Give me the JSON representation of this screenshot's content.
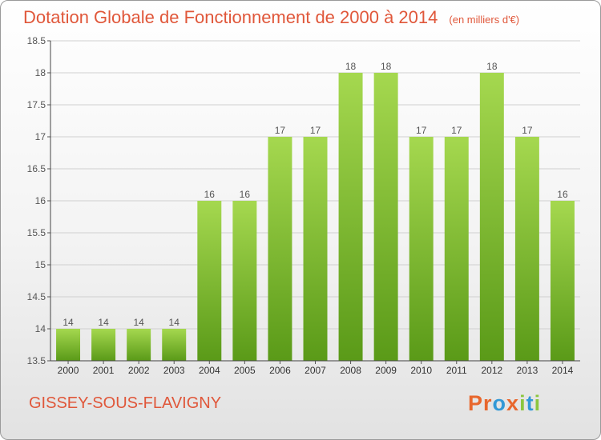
{
  "header": {
    "title": "Dotation Globale de Fonctionnement de 2000 à 2014",
    "unit": "(en milliers d'€)"
  },
  "footer": {
    "city": "GISSEY-SOUS-FLAVIGNY",
    "logo": {
      "letters": [
        "P",
        "r",
        "o",
        "x",
        "i",
        "t",
        "i"
      ],
      "colors": [
        "#e8672d",
        "#e8672d",
        "#3399d6",
        "#e8672d",
        "#8cc63f",
        "#3399d6",
        "#8cc63f"
      ]
    }
  },
  "colors": {
    "title": "#e0573a",
    "bar_top": "#a5d84f",
    "bar_bottom": "#5a9a18",
    "grid": "#d0d0d0"
  },
  "chart_data": {
    "type": "bar",
    "title": "Dotation Globale de Fonctionnement de 2000 à 2014",
    "subtitle": "(en milliers d'€)",
    "xlabel": "",
    "ylabel": "",
    "categories": [
      "2000",
      "2001",
      "2002",
      "2003",
      "2004",
      "2005",
      "2006",
      "2007",
      "2008",
      "2009",
      "2010",
      "2011",
      "2012",
      "2013",
      "2014"
    ],
    "values": [
      14,
      14,
      14,
      14,
      16,
      16,
      17,
      17,
      18,
      18,
      17,
      17,
      18,
      17,
      16
    ],
    "ylim": [
      13.5,
      18.5
    ],
    "yticks": [
      "13.5",
      "14",
      "14.5",
      "15",
      "15.5",
      "16",
      "16.5",
      "17",
      "17.5",
      "18",
      "18.5"
    ],
    "grid": true
  }
}
